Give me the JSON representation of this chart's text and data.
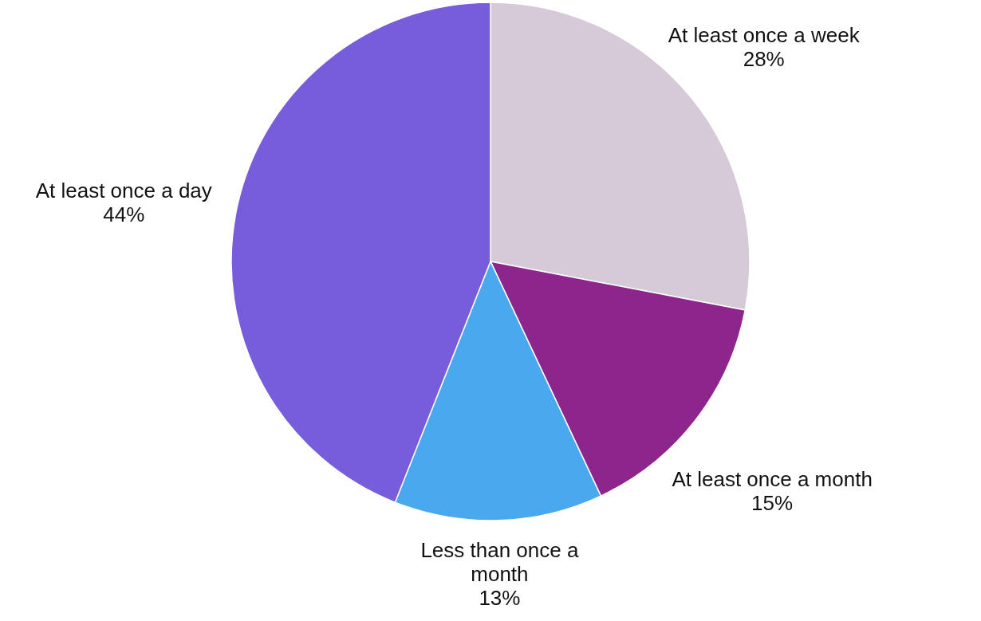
{
  "chart_data": {
    "type": "pie",
    "categories": [
      "At least once a week",
      "At least once a month",
      "Less than once a month",
      "At least once a day"
    ],
    "values": [
      28,
      15,
      13,
      44
    ],
    "value_labels": [
      "28%",
      "15%",
      "13%",
      "44%"
    ],
    "colors": [
      "#d6cad9",
      "#8e258d",
      "#49a8ee",
      "#775ddb"
    ],
    "legend": false
  }
}
